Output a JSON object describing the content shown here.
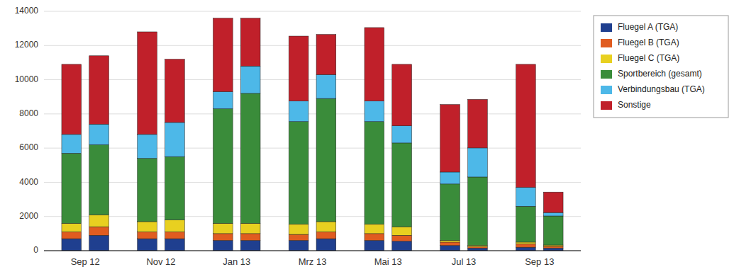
{
  "chart_data": {
    "type": "bar",
    "stacked": true,
    "categories": [
      "Sep 12",
      null,
      "Nov 12",
      null,
      "Jan 13",
      null,
      "Mrz 13",
      null,
      "Mai 13",
      null,
      "Jul 13",
      null,
      "Sep 13",
      null
    ],
    "series": [
      {
        "name": "Fluegel A (TGA)",
        "color": "#1f3f8f",
        "values": [
          700,
          900,
          700,
          700,
          600,
          600,
          600,
          700,
          600,
          550,
          300,
          150,
          200,
          150
        ]
      },
      {
        "name": "Fluegel B (TGA)",
        "color": "#e05c20",
        "values": [
          400,
          500,
          400,
          400,
          400,
          400,
          350,
          400,
          400,
          350,
          200,
          80,
          200,
          100
        ]
      },
      {
        "name": "Fluegel C (TGA)",
        "color": "#e8d020",
        "values": [
          500,
          700,
          600,
          700,
          600,
          600,
          600,
          600,
          550,
          500,
          100,
          80,
          100,
          80
        ]
      },
      {
        "name": "Sportbereich (gesamt)",
        "color": "#3a8c3a",
        "values": [
          4100,
          4100,
          3700,
          3700,
          6700,
          7600,
          6000,
          7200,
          6000,
          4900,
          3300,
          4000,
          2100,
          1700
        ]
      },
      {
        "name": "Verbindungsbau (TGA)",
        "color": "#4db8e8",
        "values": [
          1100,
          1200,
          1400,
          2000,
          1000,
          1600,
          1200,
          1400,
          1200,
          1000,
          700,
          1700,
          1100,
          200
        ]
      },
      {
        "name": "Sonstige",
        "color": "#c0202a",
        "values": [
          4100,
          4000,
          6000,
          3700,
          4300,
          2800,
          3800,
          2350,
          4300,
          3600,
          3950,
          2840,
          7200,
          1200
        ]
      }
    ],
    "ylim": [
      0,
      14000
    ],
    "yticks": [
      0,
      2000,
      4000,
      6000,
      8000,
      10000,
      12000,
      14000
    ],
    "grid": true,
    "legend": "right"
  }
}
